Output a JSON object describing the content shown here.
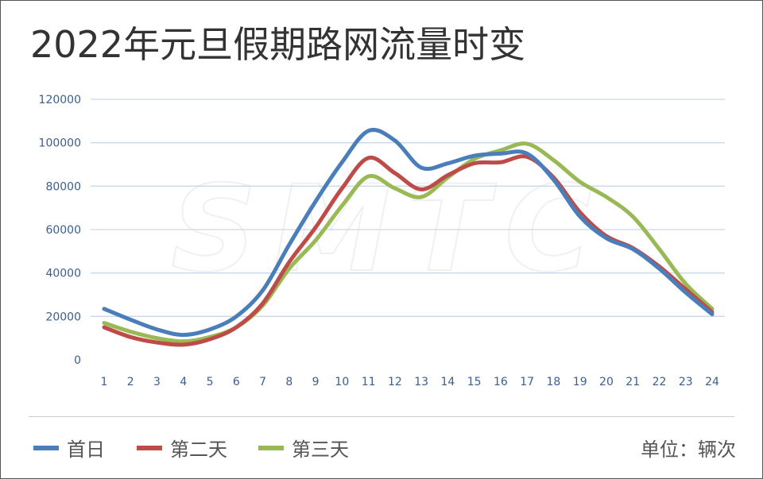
{
  "title": "2022年元旦假期路网流量时变",
  "unit_label": "单位：辆次",
  "watermark": "SMTC",
  "chart_data": {
    "type": "line",
    "title": "2022年元旦假期路网流量时变",
    "x": [
      1,
      2,
      3,
      4,
      5,
      6,
      7,
      8,
      9,
      10,
      11,
      12,
      13,
      14,
      15,
      16,
      17,
      18,
      19,
      20,
      21,
      22,
      23,
      24
    ],
    "ylim": [
      0,
      120000
    ],
    "yticks": [
      0,
      20000,
      40000,
      60000,
      80000,
      100000,
      120000
    ],
    "grid": true,
    "legend_position": "bottom-left",
    "smooth": true,
    "series": [
      {
        "name": "首日",
        "color": "#4a7ebb",
        "values": [
          23500,
          18500,
          14000,
          11500,
          14000,
          20000,
          32000,
          53000,
          73000,
          91000,
          105500,
          101000,
          88500,
          90500,
          94000,
          95000,
          95000,
          83000,
          66000,
          56000,
          51000,
          42000,
          31000,
          21000
        ]
      },
      {
        "name": "第二天",
        "color": "#be4b48",
        "values": [
          15000,
          10500,
          8000,
          7000,
          9500,
          15000,
          26000,
          45000,
          61000,
          79000,
          93000,
          86000,
          78500,
          85000,
          90500,
          91000,
          93500,
          84000,
          68000,
          57000,
          51500,
          43000,
          32500,
          22000
        ]
      },
      {
        "name": "第三天",
        "color": "#98b954",
        "values": [
          17000,
          13000,
          10000,
          8500,
          10500,
          15000,
          25000,
          42000,
          55000,
          71000,
          84500,
          79000,
          75000,
          84000,
          92500,
          96500,
          99500,
          92000,
          82000,
          75000,
          66000,
          51000,
          35000,
          23500
        ]
      }
    ]
  }
}
